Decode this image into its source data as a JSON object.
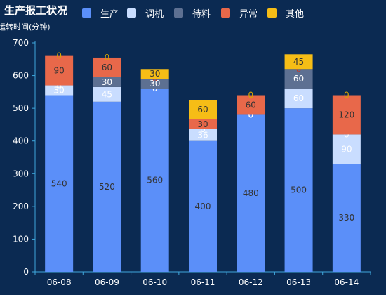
{
  "chart_data": {
    "type": "bar",
    "stacked": true,
    "title": "生产报工状况",
    "ylabel": "运转时间(分钟)",
    "ylim": [
      0,
      700
    ],
    "yticks": [
      0,
      100,
      200,
      300,
      400,
      500,
      600,
      700
    ],
    "categories": [
      "06-08",
      "06-09",
      "06-10",
      "06-11",
      "06-12",
      "06-13",
      "06-14"
    ],
    "legend_position": "top",
    "series": [
      {
        "name": "生产",
        "color": "#5b8ff9",
        "values": [
          540,
          520,
          560,
          400,
          480,
          500,
          330
        ]
      },
      {
        "name": "调机",
        "color": "#c9ddff",
        "values": [
          30,
          45,
          0,
          36,
          0,
          60,
          90
        ]
      },
      {
        "name": "待料",
        "color": "#5d7092",
        "values": [
          0,
          30,
          30,
          0,
          0,
          60,
          0
        ]
      },
      {
        "name": "异常",
        "color": "#e8684a",
        "values": [
          90,
          60,
          0,
          30,
          60,
          0,
          120
        ]
      },
      {
        "name": "其他",
        "color": "#f6bd16",
        "values": [
          0,
          0,
          30,
          60,
          0,
          45,
          0
        ]
      }
    ]
  }
}
